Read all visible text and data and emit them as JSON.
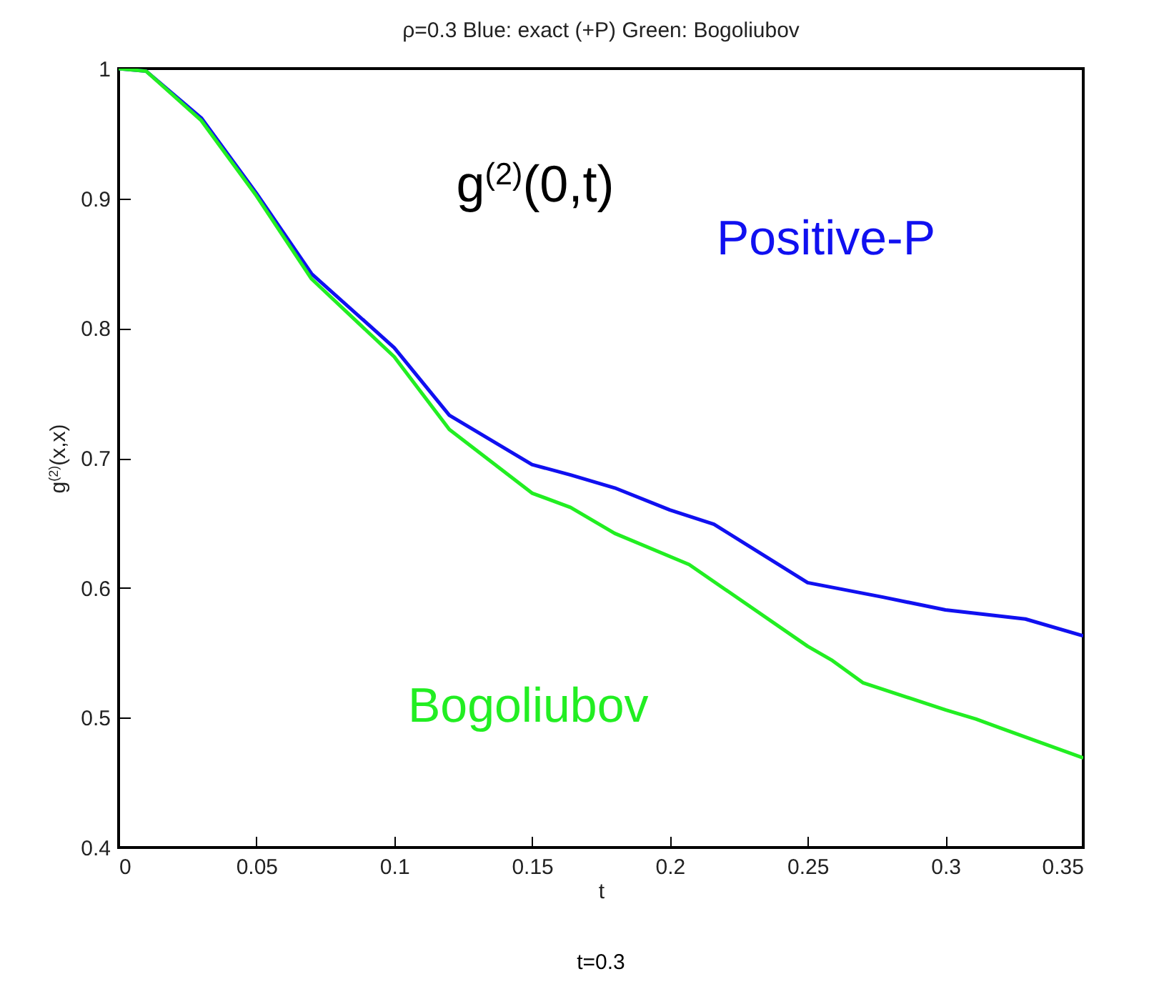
{
  "chart_data": {
    "type": "line",
    "title": "ρ=0.3    Blue: exact (+P)    Green: Bogoliubov",
    "xlabel": "t",
    "ylabel": "g$^{(2)}$(x,x)",
    "annotations": [
      "g$^{(2)}$(0,t)",
      "t=0.3"
    ],
    "xlim": [
      0,
      0.35
    ],
    "ylim": [
      0.4,
      1
    ],
    "xticks": [
      0,
      0.05,
      0.1,
      0.15,
      0.2,
      0.25,
      0.3,
      0.35
    ],
    "yticks": [
      0.4,
      0.5,
      0.6,
      0.7,
      0.8,
      0.9,
      1
    ],
    "grid": false,
    "legend": false,
    "marker": "none",
    "line_style": "solid",
    "series": [
      {
        "name": "Positive-P",
        "color": "#1010f0",
        "x": [
          0,
          0.01,
          0.03,
          0.05,
          0.07,
          0.1,
          0.12,
          0.15,
          0.164,
          0.18,
          0.2,
          0.216,
          0.25,
          0.277,
          0.3,
          0.329,
          0.35
        ],
        "values": [
          1,
          0.998,
          0.962,
          0.904,
          0.842,
          0.785,
          0.733,
          0.695,
          0.687,
          0.677,
          0.66,
          0.649,
          0.604,
          0.593,
          0.583,
          0.576,
          0.563
        ]
      },
      {
        "name": "Bogoliubov",
        "color": "#22ee22",
        "x": [
          0,
          0.01,
          0.03,
          0.05,
          0.07,
          0.1,
          0.12,
          0.15,
          0.164,
          0.18,
          0.207,
          0.25,
          0.259,
          0.27,
          0.3,
          0.311,
          0.32,
          0.35
        ],
        "values": [
          1,
          0.998,
          0.96,
          0.902,
          0.838,
          0.778,
          0.722,
          0.673,
          0.662,
          0.642,
          0.618,
          0.555,
          0.544,
          0.527,
          0.506,
          0.499,
          0.492,
          0.469
        ]
      }
    ]
  }
}
